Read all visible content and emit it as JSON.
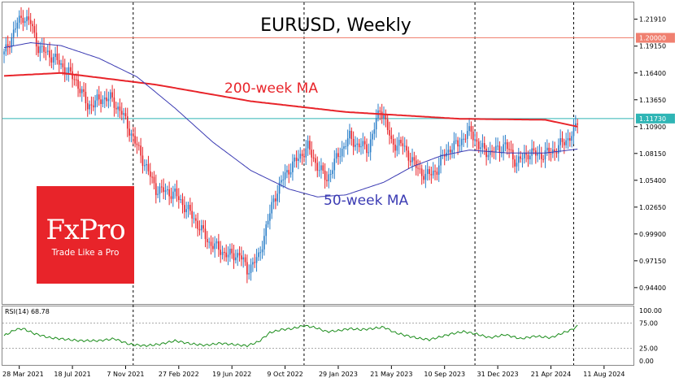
{
  "logo": {
    "brand": "FxPro",
    "tagline": "Trade Like a Pro",
    "color": "#e8242a"
  },
  "chart_data": {
    "type": "candlestick",
    "title": "EURUSD, Weekly",
    "annotations": [
      {
        "text": "200-week MA",
        "color": "#e8242a"
      },
      {
        "text": "50-week MA",
        "color": "#3b3bb3"
      }
    ],
    "price_axis": {
      "ylim": [
        0.9289,
        1.2346
      ],
      "ticks": [
        "1.21910",
        "1.19150",
        "1.16400",
        "1.13650",
        "1.10900",
        "1.08150",
        "1.05400",
        "1.02650",
        "0.99900",
        "0.97150",
        "0.94400"
      ],
      "tick_values": [
        1.2191,
        1.1915,
        1.164,
        1.1365,
        1.109,
        1.0815,
        1.054,
        1.0265,
        0.999,
        0.9715,
        0.944
      ]
    },
    "levels": [
      {
        "name": "1.20000",
        "value": 1.2,
        "color": "#f08070"
      },
      {
        "name": "1.11730",
        "value": 1.1173,
        "color": "#2fb5b5"
      }
    ],
    "time_axis": {
      "labels": [
        "28 Mar 2021",
        "18 Jul 2021",
        "7 Nov 2021",
        "27 Feb 2022",
        "19 Jun 2022",
        "9 Oct 2022",
        "29 Jan 2023",
        "21 May 2023",
        "10 Sep 2023",
        "31 Dec 2023",
        "21 Apr 2024",
        "11 Aug 2024"
      ]
    },
    "price_anchors": [
      [
        0,
        1.183
      ],
      [
        7,
        1.215
      ],
      [
        10,
        1.222
      ],
      [
        14,
        1.215
      ],
      [
        18,
        1.19
      ],
      [
        26,
        1.18
      ],
      [
        38,
        1.156
      ],
      [
        44,
        1.13
      ],
      [
        52,
        1.138
      ],
      [
        56,
        1.138
      ],
      [
        62,
        1.123
      ],
      [
        72,
        1.08
      ],
      [
        80,
        1.045
      ],
      [
        90,
        1.04
      ],
      [
        100,
        1.015
      ],
      [
        108,
        0.99
      ],
      [
        118,
        0.977
      ],
      [
        124,
        0.978
      ],
      [
        128,
        0.962
      ],
      [
        134,
        0.975
      ],
      [
        142,
        1.035
      ],
      [
        148,
        1.06
      ],
      [
        152,
        1.07
      ],
      [
        160,
        1.088
      ],
      [
        164,
        1.072
      ],
      [
        168,
        1.06
      ],
      [
        170,
        1.055
      ],
      [
        176,
        1.08
      ],
      [
        182,
        1.098
      ],
      [
        186,
        1.09
      ],
      [
        192,
        1.087
      ],
      [
        198,
        1.128
      ],
      [
        200,
        1.12
      ],
      [
        204,
        1.092
      ],
      [
        210,
        1.09
      ],
      [
        216,
        1.07
      ],
      [
        222,
        1.058
      ],
      [
        228,
        1.065
      ],
      [
        232,
        1.082
      ],
      [
        238,
        1.09
      ],
      [
        246,
        1.105
      ],
      [
        250,
        1.088
      ],
      [
        256,
        1.082
      ],
      [
        264,
        1.09
      ],
      [
        270,
        1.072
      ],
      [
        276,
        1.082
      ],
      [
        284,
        1.08
      ],
      [
        290,
        1.085
      ],
      [
        294,
        1.092
      ],
      [
        300,
        1.102
      ],
      [
        302,
        1.115
      ]
    ],
    "ma_200": {
      "name": "200-week MA",
      "values": [
        [
          0,
          1.161
        ],
        [
          30,
          1.164
        ],
        [
          80,
          1.152
        ],
        [
          130,
          1.135
        ],
        [
          180,
          1.124
        ],
        [
          240,
          1.117
        ],
        [
          285,
          1.116
        ],
        [
          302,
          1.109
        ]
      ]
    },
    "ma_50": {
      "name": "50-week MA",
      "values": [
        [
          0,
          1.19
        ],
        [
          14,
          1.195
        ],
        [
          30,
          1.192
        ],
        [
          50,
          1.179
        ],
        [
          70,
          1.16
        ],
        [
          90,
          1.128
        ],
        [
          110,
          1.093
        ],
        [
          130,
          1.064
        ],
        [
          150,
          1.045
        ],
        [
          165,
          1.037
        ],
        [
          180,
          1.039
        ],
        [
          200,
          1.052
        ],
        [
          215,
          1.068
        ],
        [
          230,
          1.079
        ],
        [
          245,
          1.085
        ],
        [
          265,
          1.082
        ],
        [
          285,
          1.082
        ],
        [
          302,
          1.086
        ]
      ]
    },
    "rsi": {
      "label": "RSI(14) 68.78",
      "ylim": [
        0,
        100
      ],
      "ticks": [
        "100.00",
        "75.00",
        "25.00",
        "0.00"
      ],
      "tick_values": [
        100,
        75,
        25,
        0
      ],
      "levels": [
        75,
        25
      ],
      "color": "#1a8c1a",
      "anchors": [
        [
          0,
          50
        ],
        [
          6,
          62
        ],
        [
          10,
          64
        ],
        [
          16,
          54
        ],
        [
          24,
          46
        ],
        [
          32,
          43
        ],
        [
          40,
          40
        ],
        [
          50,
          40
        ],
        [
          58,
          44
        ],
        [
          66,
          33
        ],
        [
          74,
          30
        ],
        [
          82,
          33
        ],
        [
          90,
          40
        ],
        [
          98,
          34
        ],
        [
          106,
          31
        ],
        [
          114,
          35
        ],
        [
          122,
          32
        ],
        [
          128,
          30
        ],
        [
          134,
          38
        ],
        [
          140,
          56
        ],
        [
          146,
          62
        ],
        [
          152,
          64
        ],
        [
          158,
          70
        ],
        [
          164,
          66
        ],
        [
          170,
          58
        ],
        [
          176,
          60
        ],
        [
          182,
          64
        ],
        [
          188,
          62
        ],
        [
          194,
          64
        ],
        [
          200,
          67
        ],
        [
          206,
          56
        ],
        [
          212,
          50
        ],
        [
          218,
          45
        ],
        [
          224,
          42
        ],
        [
          230,
          48
        ],
        [
          236,
          54
        ],
        [
          242,
          58
        ],
        [
          248,
          54
        ],
        [
          256,
          46
        ],
        [
          264,
          52
        ],
        [
          272,
          44
        ],
        [
          280,
          49
        ],
        [
          288,
          46
        ],
        [
          294,
          55
        ],
        [
          299,
          62
        ],
        [
          302,
          69
        ]
      ]
    },
    "grid": false,
    "up_color": "#2a7ec8",
    "down_color": "#e8242a"
  }
}
